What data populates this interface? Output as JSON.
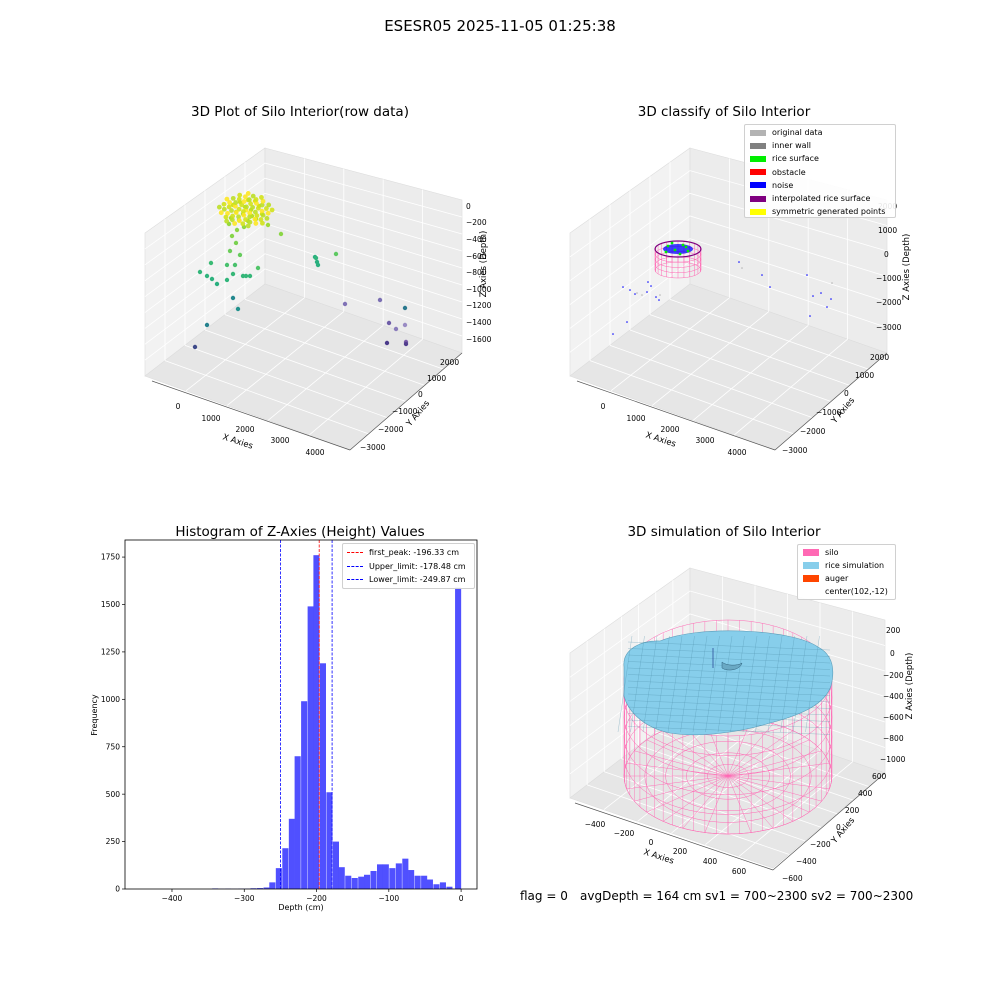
{
  "figure": {
    "title": "ESESR05 2025-11-05 01:25:38"
  },
  "panels": {
    "raw": {
      "title": "3D Plot of Silo Interior(row data)",
      "xlabel": "X Axies",
      "ylabel": "Y Axies",
      "zlabel": "Z Axies (Depth)",
      "xticks": [
        "0",
        "1000",
        "2000",
        "3000",
        "4000"
      ],
      "yticks": [
        "2000",
        "1000",
        "0",
        "−1000",
        "−2000",
        "−3000"
      ],
      "zticks": [
        "0",
        "−200",
        "−400",
        "−600",
        "−800",
        "−1000",
        "−1200",
        "−1400",
        "−1600"
      ]
    },
    "classify": {
      "title": "3D classify of Silo Interior",
      "xlabel": "X Axies",
      "ylabel": "Y Axies",
      "zlabel": "Z Axies (Depth)",
      "xticks": [
        "0",
        "1000",
        "2000",
        "3000",
        "4000"
      ],
      "yticks": [
        "2000",
        "1000",
        "0",
        "−1000",
        "−2000",
        "−3000"
      ],
      "zticks": [
        "2000",
        "1000",
        "0",
        "−1000",
        "−2000",
        "−3000"
      ],
      "legend": [
        {
          "label": "original data",
          "color": "#b3b3b3"
        },
        {
          "label": "inner wall",
          "color": "#808080"
        },
        {
          "label": "rice surface",
          "color": "#00ee00"
        },
        {
          "label": "obstacle",
          "color": "#ff0000"
        },
        {
          "label": "noise",
          "color": "#0000ff"
        },
        {
          "label": "interpolated rice surface",
          "color": "#800080"
        },
        {
          "label": "symmetric generated points",
          "color": "#ffff00"
        }
      ]
    },
    "simulation": {
      "title": "3D simulation of Silo Interior",
      "xlabel": "X Axies",
      "ylabel": "Y Axies",
      "zlabel": "Z Axies (Depth)",
      "xticks": [
        "−400",
        "−200",
        "0",
        "200",
        "400",
        "600"
      ],
      "yticks": [
        "600",
        "400",
        "200",
        "0",
        "−200",
        "−400",
        "−600"
      ],
      "zticks": [
        "200",
        "0",
        "−200",
        "−400",
        "−600",
        "−800",
        "−1000"
      ],
      "legend": [
        {
          "label": "silo",
          "color": "#ff69b4"
        },
        {
          "label": "rice simulation",
          "color": "#87ceeb"
        },
        {
          "label": "auger",
          "color": "#ff4500"
        },
        {
          "label": "center(102,-12)",
          "color": ""
        }
      ]
    }
  },
  "chart_data": [
    {
      "type": "bar",
      "title": "Histogram of Z-Axies (Height) Values",
      "xlabel": "Depth (cm)",
      "ylabel": "Frequency",
      "xlim": [
        -465,
        22
      ],
      "ylim": [
        0,
        1840
      ],
      "xticks": [
        -400,
        -300,
        -200,
        -100,
        0
      ],
      "yticks": [
        0,
        250,
        500,
        750,
        1000,
        1250,
        1500,
        1750
      ],
      "bin_width": 8.7,
      "bars": [
        {
          "x": -340,
          "y": 3
        },
        {
          "x": -331,
          "y": 1
        },
        {
          "x": -322,
          "y": 2
        },
        {
          "x": -313,
          "y": 1
        },
        {
          "x": -304,
          "y": 2
        },
        {
          "x": -295,
          "y": 2
        },
        {
          "x": -287,
          "y": 4
        },
        {
          "x": -278,
          "y": 5
        },
        {
          "x": -269,
          "y": 8
        },
        {
          "x": -261,
          "y": 35
        },
        {
          "x": -252,
          "y": 110
        },
        {
          "x": -243,
          "y": 215
        },
        {
          "x": -234,
          "y": 370
        },
        {
          "x": -226,
          "y": 700
        },
        {
          "x": -217,
          "y": 990
        },
        {
          "x": -208,
          "y": 1490
        },
        {
          "x": -200,
          "y": 1760
        },
        {
          "x": -191,
          "y": 1190
        },
        {
          "x": -182,
          "y": 510
        },
        {
          "x": -173,
          "y": 250
        },
        {
          "x": -165,
          "y": 115
        },
        {
          "x": -156,
          "y": 70
        },
        {
          "x": -147,
          "y": 58
        },
        {
          "x": -138,
          "y": 65
        },
        {
          "x": -130,
          "y": 75
        },
        {
          "x": -121,
          "y": 95
        },
        {
          "x": -112,
          "y": 130
        },
        {
          "x": -104,
          "y": 130
        },
        {
          "x": -95,
          "y": 110
        },
        {
          "x": -86,
          "y": 135
        },
        {
          "x": -77,
          "y": 160
        },
        {
          "x": -69,
          "y": 100
        },
        {
          "x": -60,
          "y": 70
        },
        {
          "x": -51,
          "y": 70
        },
        {
          "x": -43,
          "y": 50
        },
        {
          "x": -34,
          "y": 25
        },
        {
          "x": -25,
          "y": 35
        },
        {
          "x": -16,
          "y": 12
        },
        {
          "x": -8,
          "y": 1
        },
        {
          "x": -4,
          "y": 1590
        }
      ],
      "vlines": [
        {
          "label": "first_peak: -196.33 cm",
          "x": -196.33,
          "color": "#ff0000"
        },
        {
          "label": "Upper_limit: -178.48 cm",
          "x": -178.48,
          "color": "#0000ff"
        },
        {
          "label": "Lower_limit: -249.87 cm",
          "x": -249.87,
          "color": "#0000ff"
        }
      ],
      "bar_color": "#4d4dff",
      "legend_position": "top-right"
    }
  ],
  "footer": {
    "flag": "flag = 0",
    "avg": "avgDepth = 164 cm  sv1 = 700~2300  sv2 = 700~2300"
  }
}
